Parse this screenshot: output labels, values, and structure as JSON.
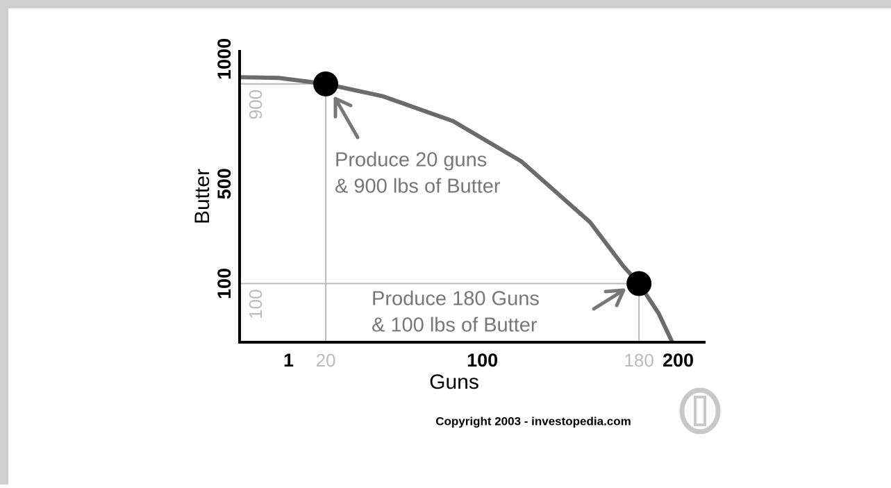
{
  "chart_data": {
    "type": "line",
    "x_label": "Guns",
    "y_label": "Butter",
    "xlim": [
      -24,
      214
    ],
    "ylim": [
      -135,
      1036
    ],
    "xticks": [
      1,
      100,
      200
    ],
    "yticks": [
      100,
      500,
      1000
    ],
    "series": [
      {
        "color": "#6b6b6b",
        "x": [
          -24,
          -4,
          20,
          49,
          85,
          120,
          155,
          172,
          180,
          190,
          197
        ],
        "values": [
          927,
          924,
          900,
          851,
          751,
          589,
          346,
          170,
          100,
          -19,
          -135
        ]
      }
    ],
    "points": {
      "color": "#000000",
      "x": [
        20,
        180
      ],
      "values": [
        900,
        100
      ]
    },
    "guide_color": "#bbbbbb",
    "annotations": [
      [
        "Produce 20 guns",
        "& 900 lbs of Butter"
      ],
      [
        "Produce 180 Guns",
        "& 100 lbs of Butter"
      ]
    ],
    "copyright": "Copyright 2003 - investopedia.com"
  }
}
